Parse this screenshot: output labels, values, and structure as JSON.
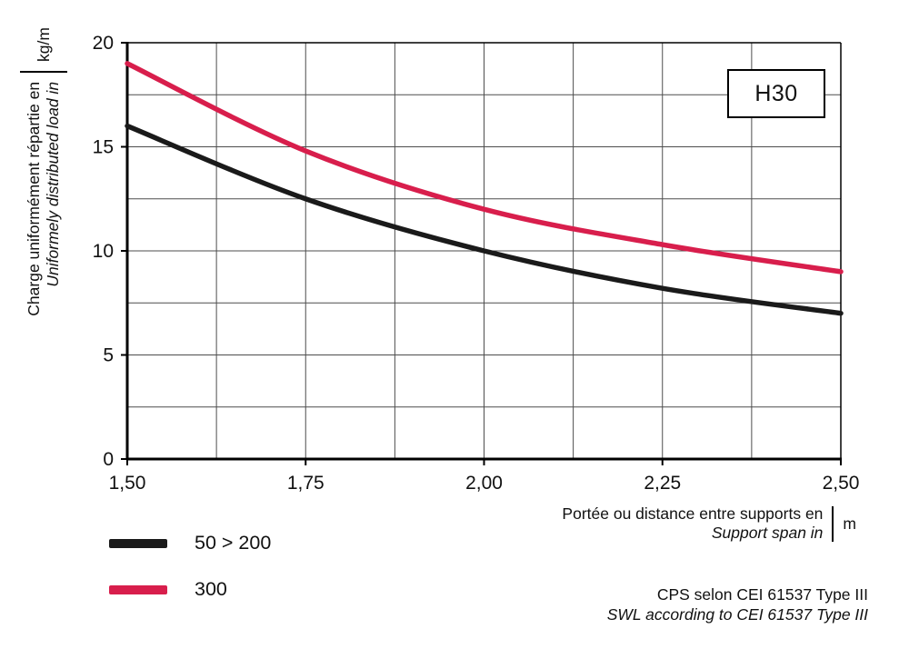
{
  "chart_data": {
    "type": "line",
    "x": [
      1.5,
      1.75,
      2.0,
      2.25,
      2.5
    ],
    "x_tick_labels": [
      "1,50",
      "1,75",
      "2,00",
      "2,25",
      "2,50"
    ],
    "y_ticks": [
      0,
      5,
      10,
      15,
      20
    ],
    "y_tick_labels": [
      "0",
      "5",
      "10",
      "15",
      "20"
    ],
    "xlim": [
      1.5,
      2.5
    ],
    "ylim": [
      0,
      20
    ],
    "x_minor_step": 0.125,
    "y_minor_step": 2.5,
    "grid": true,
    "legend_position": "bottom-left",
    "series": [
      {
        "name": "50 > 200",
        "color": "#1a1a1a",
        "values": [
          16,
          12.5,
          10,
          8.2,
          7
        ]
      },
      {
        "name": "300",
        "color": "#d81e4c",
        "values": [
          19,
          14.8,
          12,
          10.3,
          9
        ]
      }
    ],
    "ylabel_fr": "Charge uniformément répartie en",
    "ylabel_en": "Uniformely distributed load in",
    "y_unit": "kg/m",
    "xlabel_fr": "Portée ou distance entre supports en",
    "xlabel_en": "Support span in",
    "x_unit": "m",
    "badge": "H30"
  },
  "footnote": {
    "line1": "CPS selon CEI 61537 Type III",
    "line2": "SWL according to CEI 61537 Type III"
  },
  "colors": {
    "axis": "#000000",
    "grid": "#4d4d4d"
  }
}
